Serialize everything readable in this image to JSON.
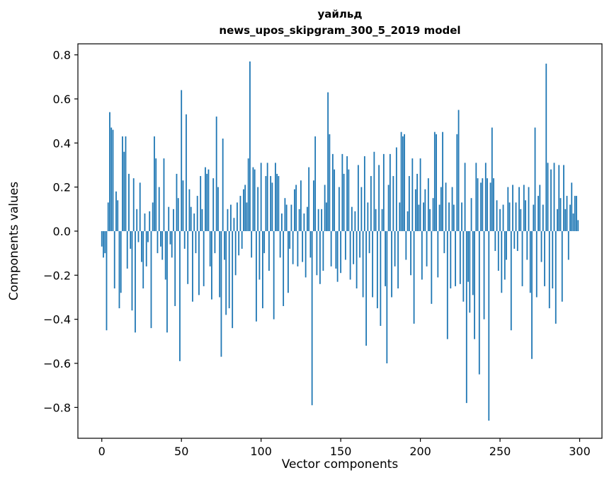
{
  "chart_data": {
    "type": "bar",
    "title": "уайльд",
    "subtitle": "news_upos_skipgram_300_5_2019 model",
    "xlabel": "Vector components",
    "ylabel": "Components values",
    "bar_color": "#1f77b4",
    "axis_color": "#000000",
    "xlim": [
      -15,
      314
    ],
    "ylim": [
      -0.94,
      0.85
    ],
    "xticks": [
      0,
      50,
      100,
      150,
      200,
      250,
      300
    ],
    "yticks": [
      -0.8,
      -0.6,
      -0.4,
      -0.2,
      0.0,
      0.2,
      0.4,
      0.6,
      0.8
    ],
    "x_start": 0,
    "values": [
      -0.07,
      -0.12,
      -0.1,
      -0.45,
      0.13,
      0.54,
      0.47,
      0.46,
      -0.26,
      0.18,
      0.14,
      -0.35,
      -0.28,
      0.43,
      0.36,
      0.43,
      -0.17,
      0.26,
      -0.08,
      -0.36,
      0.24,
      -0.46,
      0.1,
      -0.05,
      0.22,
      -0.14,
      -0.26,
      0.08,
      -0.16,
      -0.05,
      0.09,
      -0.44,
      0.13,
      0.43,
      0.33,
      -0.1,
      0.2,
      -0.07,
      -0.13,
      0.33,
      -0.22,
      -0.46,
      0.11,
      -0.06,
      -0.12,
      0.1,
      -0.34,
      0.26,
      0.15,
      -0.59,
      0.64,
      0.23,
      -0.08,
      0.53,
      -0.24,
      0.19,
      0.11,
      -0.32,
      0.08,
      -0.1,
      0.16,
      -0.29,
      0.25,
      0.1,
      -0.25,
      0.29,
      0.26,
      0.28,
      -0.16,
      -0.31,
      0.24,
      -0.1,
      0.52,
      0.2,
      -0.3,
      -0.57,
      0.42,
      -0.13,
      -0.38,
      0.1,
      -0.35,
      0.12,
      -0.44,
      0.06,
      -0.2,
      0.13,
      -0.11,
      0.16,
      -0.08,
      0.19,
      0.21,
      0.13,
      0.33,
      0.77,
      -0.12,
      0.29,
      0.28,
      -0.41,
      0.2,
      -0.22,
      0.31,
      -0.35,
      -0.1,
      0.25,
      0.31,
      -0.18,
      0.25,
      0.22,
      -0.4,
      0.31,
      0.26,
      0.25,
      -0.12,
      0.08,
      -0.34,
      0.15,
      0.12,
      -0.28,
      -0.08,
      0.12,
      -0.15,
      0.19,
      0.21,
      -0.16,
      0.1,
      0.23,
      -0.14,
      0.08,
      -0.21,
      0.11,
      0.29,
      -0.12,
      -0.79,
      0.23,
      0.43,
      -0.2,
      0.1,
      -0.24,
      0.1,
      -0.18,
      0.21,
      0.13,
      0.63,
      0.44,
      -0.16,
      0.35,
      0.28,
      -0.17,
      -0.23,
      0.2,
      -0.19,
      0.35,
      0.26,
      -0.13,
      0.34,
      0.28,
      -0.22,
      0.11,
      -0.15,
      0.09,
      -0.26,
      0.3,
      -0.12,
      0.2,
      -0.3,
      0.34,
      -0.52,
      0.13,
      -0.1,
      0.25,
      -0.3,
      0.36,
      0.1,
      -0.35,
      0.3,
      -0.43,
      0.1,
      0.35,
      -0.25,
      -0.6,
      0.21,
      0.35,
      -0.3,
      0.25,
      -0.16,
      0.38,
      -0.26,
      0.13,
      0.45,
      0.43,
      0.44,
      -0.13,
      0.09,
      0.25,
      -0.2,
      0.33,
      -0.42,
      0.19,
      0.26,
      0.12,
      0.33,
      -0.22,
      0.13,
      0.19,
      -0.16,
      0.24,
      0.1,
      -0.33,
      0.15,
      0.45,
      0.44,
      -0.21,
      0.12,
      0.2,
      0.45,
      -0.1,
      0.22,
      -0.49,
      0.13,
      -0.26,
      0.2,
      0.12,
      -0.25,
      0.44,
      0.55,
      -0.24,
      0.13,
      -0.32,
      0.31,
      -0.78,
      -0.23,
      -0.37,
      0.15,
      -0.29,
      -0.49,
      0.31,
      0.24,
      -0.65,
      0.22,
      0.24,
      -0.4,
      0.31,
      0.24,
      -0.86,
      0.22,
      0.47,
      0.24,
      -0.09,
      0.14,
      -0.18,
      0.1,
      -0.28,
      0.12,
      -0.22,
      -0.13,
      0.2,
      0.13,
      -0.45,
      0.21,
      -0.08,
      0.13,
      -0.09,
      0.2,
      0.1,
      -0.25,
      0.21,
      0.14,
      -0.13,
      0.2,
      -0.28,
      -0.58,
      0.12,
      0.47,
      -0.3,
      0.16,
      0.21,
      -0.14,
      0.12,
      -0.25,
      0.76,
      0.31,
      -0.35,
      0.28,
      -0.26,
      0.31,
      -0.42,
      0.1,
      0.3,
      0.15,
      -0.32,
      0.3,
      0.1,
      0.16,
      -0.13,
      0.12,
      0.22,
      0.08,
      0.16,
      0.16,
      0.05
    ]
  }
}
